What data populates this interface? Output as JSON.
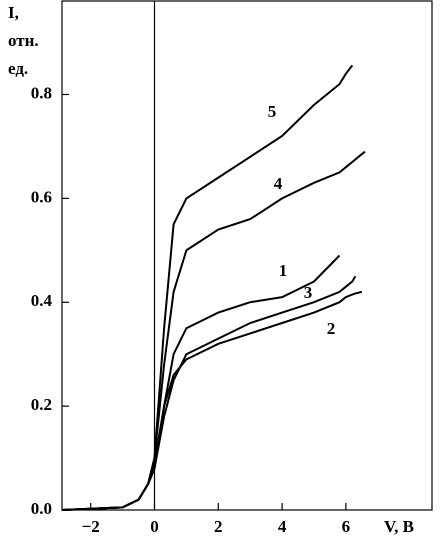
{
  "chart_data": {
    "type": "line",
    "ylabel": [
      "I,",
      "отн.",
      "ед."
    ],
    "xlabel": "V, В",
    "x": [
      -2.9,
      -1,
      -0.5,
      -0.2,
      0,
      0.3,
      0.6,
      1,
      2,
      3,
      4,
      5,
      5.8,
      6,
      6.2,
      6.3,
      6.5,
      6.6
    ],
    "series": [
      {
        "name": "1",
        "color": "#000000",
        "values": [
          0,
          0.005,
          0.02,
          0.05,
          0.09,
          0.2,
          0.3,
          0.35,
          0.38,
          0.4,
          0.41,
          0.44,
          0.49,
          null,
          null,
          null,
          null,
          null
        ]
      },
      {
        "name": "2",
        "color": "#000000",
        "values": [
          0,
          0.005,
          0.02,
          0.05,
          0.08,
          0.2,
          0.26,
          0.29,
          0.32,
          0.34,
          0.36,
          0.38,
          0.4,
          0.41,
          0.415,
          0.417,
          0.42,
          null
        ]
      },
      {
        "name": "3",
        "color": "#000000",
        "values": [
          0,
          0.005,
          0.02,
          0.05,
          0.08,
          0.18,
          0.25,
          0.3,
          0.33,
          0.36,
          0.38,
          0.4,
          0.42,
          0.43,
          0.44,
          0.45,
          null,
          null
        ]
      },
      {
        "name": "4",
        "color": "#000000",
        "values": [
          0,
          0.005,
          0.02,
          0.05,
          0.1,
          0.28,
          0.42,
          0.5,
          0.54,
          0.56,
          0.6,
          0.63,
          0.65,
          0.66,
          0.67,
          0.675,
          0.685,
          0.69
        ]
      },
      {
        "name": "5",
        "color": "#000000",
        "values": [
          0,
          0.005,
          0.02,
          0.05,
          0.1,
          0.35,
          0.55,
          0.6,
          0.64,
          0.68,
          0.72,
          0.78,
          0.82,
          0.84,
          0.856,
          null,
          null,
          null
        ]
      }
    ],
    "xlim": [
      -2.9,
      8.7
    ],
    "ylim": [
      0,
      0.98
    ],
    "xticks": [
      {
        "value": -2,
        "label": "−2"
      },
      0,
      2,
      4,
      6
    ],
    "yticks": [
      {
        "value": 0,
        "label": "0.0"
      },
      0.2,
      0.4,
      0.6,
      0.8
    ]
  }
}
